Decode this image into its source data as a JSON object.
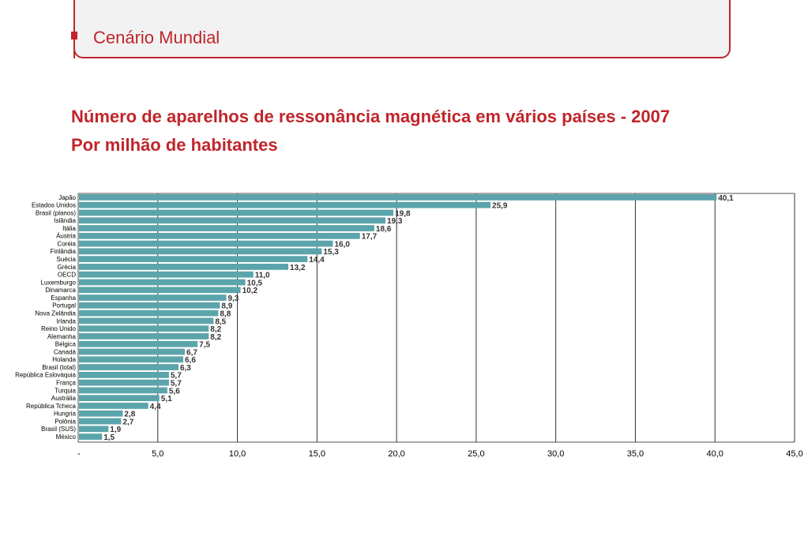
{
  "header": {
    "title": "Cenário Mundial"
  },
  "subtitle": {
    "line1": "Número de aparelhos de ressonância magnética em vários países - 2007",
    "line2": "Por milhão de habitantes"
  },
  "colors": {
    "accent": "#c0252b",
    "bar": "#5ba4ab",
    "grid": "#333333"
  },
  "chart_data": {
    "type": "bar",
    "orientation": "horizontal",
    "categories": [
      "Japão",
      "Estados Unidos",
      "Brasil (planos)",
      "Islândia",
      "Itália",
      "Áustria",
      "Coréia",
      "Finlândia",
      "Suécia",
      "Grécia",
      "OECD",
      "Luxemburgo",
      "Dinamarca",
      "Espanha",
      "Portugal",
      "Nova Zelândia",
      "Irlanda",
      "Reino Unido",
      "Alemanha",
      "Bélgica",
      "Canadá",
      "Holanda",
      "Brasil (total)",
      "República Eslováquia",
      "França",
      "Turquia",
      "Austrália",
      "República Tcheca",
      "Hungria",
      "Polônia",
      "Brasil (SUS)",
      "México"
    ],
    "values": [
      40.1,
      25.9,
      19.8,
      19.3,
      18.6,
      17.7,
      16.0,
      15.3,
      14.4,
      13.2,
      11.0,
      10.5,
      10.2,
      9.3,
      8.9,
      8.8,
      8.5,
      8.2,
      8.2,
      7.5,
      6.7,
      6.6,
      6.3,
      5.7,
      5.7,
      5.6,
      5.1,
      4.4,
      2.8,
      2.7,
      1.9,
      1.5
    ],
    "value_labels": [
      "40,1",
      "25,9",
      "19,8",
      "19,3",
      "18,6",
      "17,7",
      "16,0",
      "15,3",
      "14,4",
      "13,2",
      "11,0",
      "10,5",
      "10,2",
      "9,3",
      "8,9",
      "8,8",
      "8,5",
      "8,2",
      "8,2",
      "7,5",
      "6,7",
      "6,6",
      "6,3",
      "5,7",
      "5,7",
      "5,6",
      "5,1",
      "4,4",
      "2,8",
      "2,7",
      "1,9",
      "1,5"
    ],
    "xlim": [
      0,
      45
    ],
    "xticks": [
      "-",
      "5,0",
      "10,0",
      "15,0",
      "20,0",
      "25,0",
      "30,0",
      "35,0",
      "40,0",
      "45,0"
    ],
    "grid": "vertical"
  }
}
